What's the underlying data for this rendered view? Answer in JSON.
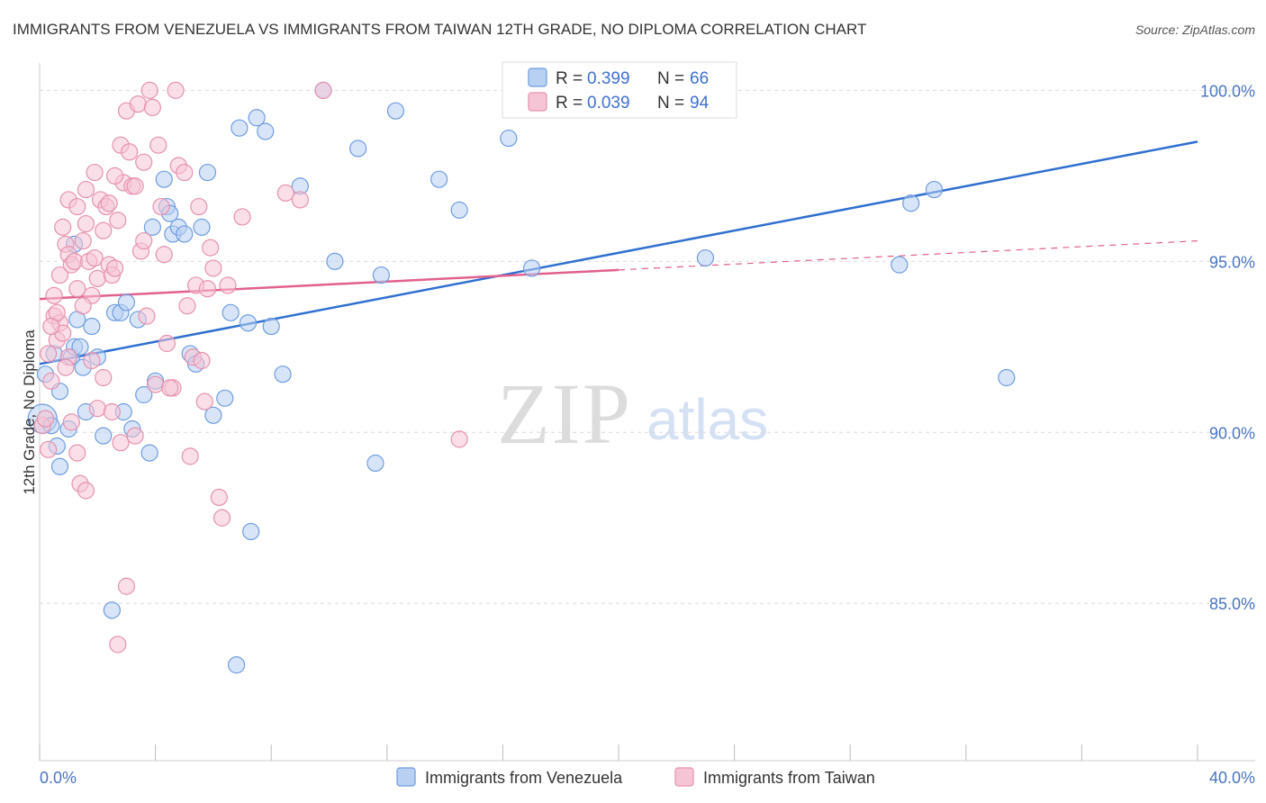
{
  "chart_data": {
    "type": "scatter",
    "title": "IMMIGRANTS FROM VENEZUELA VS IMMIGRANTS FROM TAIWAN 12TH GRADE, NO DIPLOMA CORRELATION CHART",
    "source": "Source: ZipAtlas.com",
    "xlabel": "",
    "ylabel": "12th Grade, No Diploma",
    "xlim": [
      0,
      40
    ],
    "ylim": [
      80.4,
      100.8
    ],
    "x_tick_labels": [
      {
        "value": 0,
        "label": "0.0%"
      },
      {
        "value": 40,
        "label": "40.0%"
      }
    ],
    "y_ticks": [
      {
        "value": 100,
        "label": "100.0%"
      },
      {
        "value": 95,
        "label": "95.0%"
      },
      {
        "value": 90,
        "label": "90.0%"
      },
      {
        "value": 85,
        "label": "85.0%"
      }
    ],
    "watermark": {
      "zip": "ZIP",
      "atlas": "atlas"
    },
    "legend": {
      "r_label": "R =",
      "n_label": "N =",
      "entries": [
        {
          "r": "0.399",
          "n": "66"
        },
        {
          "r": "0.039",
          "n": "94"
        }
      ]
    },
    "series": [
      {
        "name": "Immigrants from Venezuela",
        "color": "#6e9de0",
        "fill": "#b8d0f2",
        "line_color": "#2f6fd0",
        "trend": {
          "x0": 0.0,
          "y0": 92.0,
          "x1": 40.0,
          "y1": 98.5,
          "dash_from": null
        },
        "points": [
          [
            0.1,
            90.4
          ],
          [
            0.2,
            91.7
          ],
          [
            0.4,
            90.2
          ],
          [
            0.5,
            92.3
          ],
          [
            0.6,
            89.6
          ],
          [
            0.7,
            91.2
          ],
          [
            0.7,
            89.0
          ],
          [
            1.0,
            90.1
          ],
          [
            1.1,
            92.2
          ],
          [
            1.2,
            92.5
          ],
          [
            1.3,
            93.3
          ],
          [
            1.4,
            92.5
          ],
          [
            1.5,
            91.9
          ],
          [
            1.6,
            90.6
          ],
          [
            1.8,
            93.1
          ],
          [
            2.0,
            92.2
          ],
          [
            2.2,
            89.9
          ],
          [
            2.5,
            84.8
          ],
          [
            2.6,
            93.5
          ],
          [
            2.8,
            93.5
          ],
          [
            2.9,
            90.6
          ],
          [
            3.0,
            93.8
          ],
          [
            3.2,
            90.1
          ],
          [
            3.4,
            93.3
          ],
          [
            3.6,
            91.1
          ],
          [
            3.8,
            89.4
          ],
          [
            4.0,
            91.5
          ],
          [
            4.3,
            97.4
          ],
          [
            4.4,
            96.6
          ],
          [
            4.5,
            96.4
          ],
          [
            4.6,
            95.8
          ],
          [
            4.8,
            96.0
          ],
          [
            5.0,
            95.8
          ],
          [
            5.2,
            92.3
          ],
          [
            5.4,
            92.0
          ],
          [
            5.6,
            96.0
          ],
          [
            5.8,
            97.6
          ],
          [
            6.0,
            90.5
          ],
          [
            6.4,
            91.0
          ],
          [
            6.6,
            93.5
          ],
          [
            6.8,
            83.2
          ],
          [
            6.9,
            98.9
          ],
          [
            7.2,
            93.2
          ],
          [
            7.3,
            87.1
          ],
          [
            7.5,
            99.2
          ],
          [
            7.8,
            98.8
          ],
          [
            8.0,
            93.1
          ],
          [
            8.4,
            91.7
          ],
          [
            9.0,
            97.2
          ],
          [
            9.8,
            100.0
          ],
          [
            11.0,
            98.3
          ],
          [
            11.6,
            89.1
          ],
          [
            11.8,
            94.6
          ],
          [
            12.3,
            99.4
          ],
          [
            13.8,
            97.4
          ],
          [
            16.2,
            98.6
          ],
          [
            17.0,
            94.8
          ],
          [
            23.0,
            95.1
          ],
          [
            29.7,
            94.9
          ],
          [
            30.1,
            96.7
          ],
          [
            30.9,
            97.1
          ],
          [
            33.4,
            91.6
          ],
          [
            1.2,
            95.5
          ],
          [
            3.9,
            96.0
          ],
          [
            10.2,
            95.0
          ],
          [
            14.5,
            96.5
          ]
        ]
      },
      {
        "name": "Immigrants from Taiwan",
        "color": "#e692ad",
        "fill": "#f6c5d5",
        "line_color": "#e2608d",
        "trend": {
          "x0": 0.0,
          "y0": 93.9,
          "x1": 40.0,
          "y1": 95.6,
          "dash_from": 20.0
        },
        "points": [
          [
            0.1,
            90.2
          ],
          [
            0.2,
            90.4
          ],
          [
            0.3,
            89.5
          ],
          [
            0.4,
            91.5
          ],
          [
            0.5,
            93.4
          ],
          [
            0.6,
            92.7
          ],
          [
            0.7,
            93.2
          ],
          [
            0.7,
            94.6
          ],
          [
            0.8,
            92.9
          ],
          [
            0.9,
            95.5
          ],
          [
            1.0,
            95.2
          ],
          [
            1.0,
            96.8
          ],
          [
            1.1,
            94.9
          ],
          [
            1.2,
            95.0
          ],
          [
            1.3,
            94.2
          ],
          [
            1.3,
            96.6
          ],
          [
            1.5,
            95.6
          ],
          [
            1.6,
            96.1
          ],
          [
            1.6,
            97.1
          ],
          [
            1.7,
            95.0
          ],
          [
            1.8,
            94.0
          ],
          [
            1.9,
            95.1
          ],
          [
            2.0,
            94.5
          ],
          [
            2.1,
            96.8
          ],
          [
            2.2,
            95.9
          ],
          [
            2.3,
            96.6
          ],
          [
            2.4,
            94.9
          ],
          [
            2.5,
            94.6
          ],
          [
            2.6,
            94.8
          ],
          [
            2.7,
            96.2
          ],
          [
            2.8,
            98.4
          ],
          [
            2.9,
            97.3
          ],
          [
            3.0,
            99.4
          ],
          [
            3.1,
            98.2
          ],
          [
            3.2,
            97.2
          ],
          [
            3.3,
            97.2
          ],
          [
            3.4,
            99.6
          ],
          [
            3.5,
            95.3
          ],
          [
            3.6,
            97.9
          ],
          [
            3.7,
            93.4
          ],
          [
            3.8,
            100.0
          ],
          [
            3.9,
            99.5
          ],
          [
            4.0,
            91.4
          ],
          [
            4.1,
            98.4
          ],
          [
            4.2,
            96.6
          ],
          [
            4.3,
            95.2
          ],
          [
            4.4,
            92.6
          ],
          [
            4.6,
            91.3
          ],
          [
            4.7,
            100.0
          ],
          [
            4.8,
            97.8
          ],
          [
            5.0,
            97.6
          ],
          [
            5.1,
            93.7
          ],
          [
            5.2,
            89.3
          ],
          [
            5.3,
            92.2
          ],
          [
            5.4,
            94.3
          ],
          [
            5.5,
            96.6
          ],
          [
            5.6,
            92.1
          ],
          [
            5.7,
            90.9
          ],
          [
            5.8,
            94.2
          ],
          [
            6.0,
            94.8
          ],
          [
            6.2,
            88.1
          ],
          [
            6.3,
            87.5
          ],
          [
            8.5,
            97.0
          ],
          [
            9.0,
            96.8
          ],
          [
            9.8,
            100.0
          ],
          [
            14.5,
            89.8
          ],
          [
            2.0,
            90.7
          ],
          [
            2.5,
            90.6
          ],
          [
            1.4,
            88.5
          ],
          [
            1.6,
            88.3
          ],
          [
            1.3,
            89.4
          ],
          [
            2.8,
            89.7
          ],
          [
            3.0,
            85.5
          ],
          [
            2.7,
            83.8
          ],
          [
            1.0,
            92.2
          ],
          [
            0.9,
            91.9
          ],
          [
            0.6,
            93.5
          ],
          [
            0.4,
            93.1
          ],
          [
            0.3,
            92.3
          ],
          [
            1.8,
            92.1
          ],
          [
            2.2,
            91.6
          ],
          [
            1.1,
            90.3
          ],
          [
            3.3,
            89.9
          ],
          [
            4.5,
            91.3
          ],
          [
            3.6,
            95.6
          ],
          [
            1.5,
            93.7
          ],
          [
            2.4,
            96.7
          ],
          [
            6.5,
            94.3
          ],
          [
            5.9,
            95.4
          ],
          [
            7.0,
            96.3
          ],
          [
            0.8,
            96.0
          ],
          [
            1.9,
            97.6
          ],
          [
            2.6,
            97.5
          ],
          [
            0.5,
            94.0
          ]
        ]
      }
    ]
  }
}
